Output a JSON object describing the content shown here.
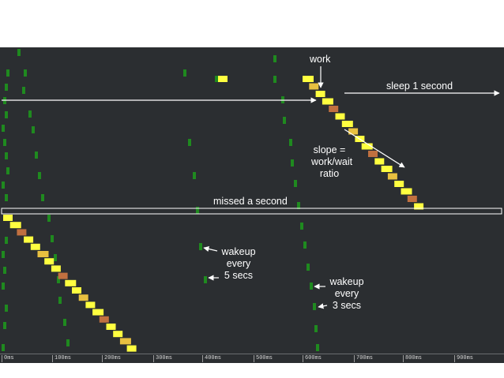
{
  "colors": {
    "background": "#2b2e31",
    "wakeup": "#1f8a1f",
    "work_high": "#ffff40",
    "work_mid": "#e8c040",
    "work_low": "#c07040",
    "annotation": "#ffffff"
  },
  "annotations": {
    "work": "work",
    "sleep": "sleep 1 second",
    "slope": [
      "slope =",
      "work/wait",
      "ratio"
    ],
    "missed": "missed a second",
    "wakeup5": [
      "wakeup",
      "every",
      "5 secs"
    ],
    "wakeup3": [
      "wakeup",
      "every",
      "3 secs"
    ]
  },
  "axis": {
    "ticks": [
      "0ms",
      "100ms",
      "200ms",
      "300ms",
      "400ms",
      "500ms",
      "600ms",
      "700ms",
      "800ms",
      "900ms"
    ]
  }
}
